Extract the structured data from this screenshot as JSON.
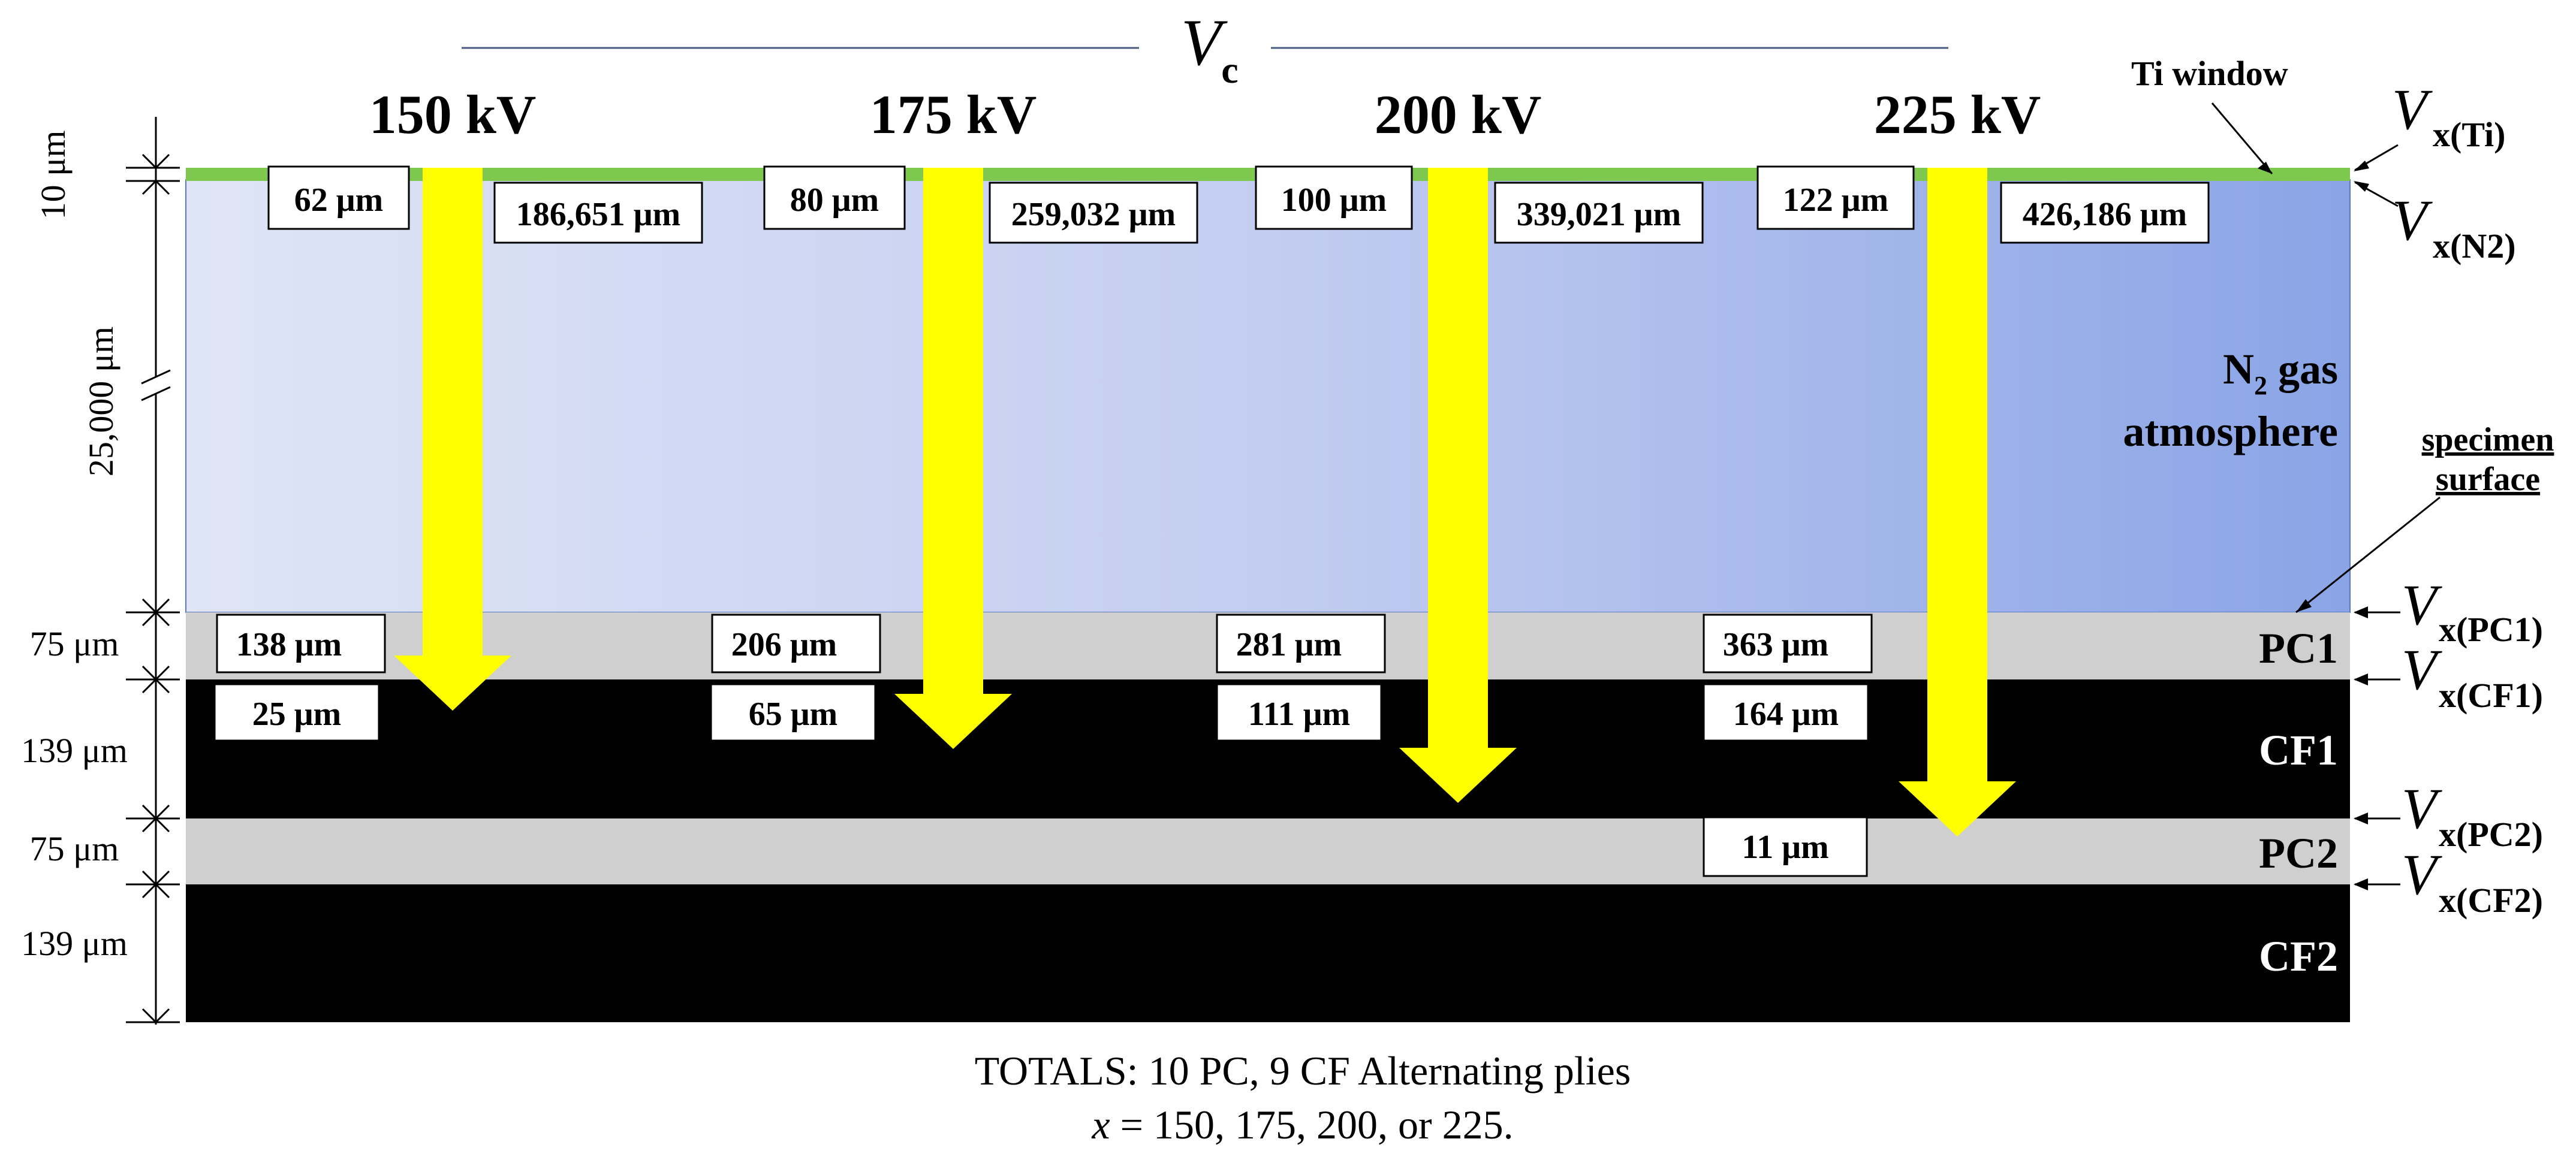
{
  "title": {
    "symbol": "V",
    "subscript": "c"
  },
  "voltages": [
    "150 kV",
    "175 kV",
    "200 kV",
    "225 kV"
  ],
  "layers": [
    {
      "id": "ti",
      "thickness": "10 μm",
      "color": "#7ec850"
    },
    {
      "id": "n2",
      "thickness": "25,000 μm",
      "name_main": "N",
      "name_sub": "2",
      "name_rest": " gas",
      "name_line2": "atmosphere",
      "color_start": "#dfe5f6",
      "color_end": "#8aa4e6"
    },
    {
      "id": "pc1",
      "thickness": "75 μm",
      "name": "PC1",
      "color": "#d0cfd0"
    },
    {
      "id": "cf1",
      "thickness": "139 μm",
      "name": "CF1",
      "color": "#000000"
    },
    {
      "id": "pc2",
      "thickness": "75 μm",
      "name": "PC2",
      "color": "#d0cfd0"
    },
    {
      "id": "cf2",
      "thickness": "139 μm",
      "name": "CF2",
      "color": "#000000"
    }
  ],
  "ti_window_label": "Ti window",
  "specimen_surface_label": [
    "specimen",
    "surface"
  ],
  "side_labels": [
    {
      "symbol": "V",
      "subscript": "x(Ti)"
    },
    {
      "symbol": "V",
      "subscript": "x(N2)"
    },
    {
      "symbol": "V",
      "subscript": "x(PC1)"
    },
    {
      "symbol": "V",
      "subscript": "x(CF1)"
    },
    {
      "symbol": "V",
      "subscript": "x(PC2)"
    },
    {
      "symbol": "V",
      "subscript": "x(CF2)"
    }
  ],
  "values": {
    "ti": [
      "62 μm",
      "80 μm",
      "100 μm",
      "122 μm"
    ],
    "n2": [
      "186,651 μm",
      "259,032 μm",
      "339,021 μm",
      "426,186 μm"
    ],
    "pc1": [
      "138 μm",
      "206 μm",
      "281 μm",
      "363 μm"
    ],
    "cf1": [
      "25 μm",
      "65 μm",
      "111 μm",
      "164 μm"
    ],
    "pc2": [
      "11 μm"
    ]
  },
  "footer": {
    "line1": "TOTALS: 10 PC, 9 CF Alternating plies",
    "line2_var": "x",
    "line2_rest": " = 150, 175, 200, or 225."
  },
  "colors": {
    "arrow": "#ffff00",
    "ti": "#7ec850",
    "pc": "#d0cfd0",
    "cf": "#000000"
  }
}
